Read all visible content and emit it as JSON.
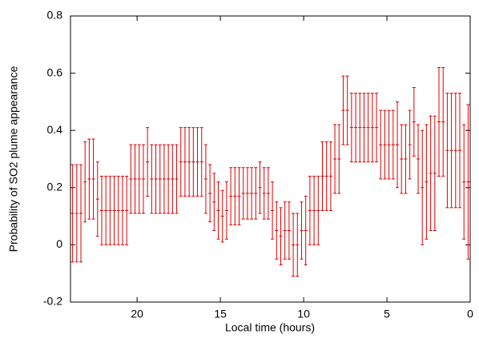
{
  "chart_data": {
    "type": "errorbar",
    "xlabel": "Local time (hours)",
    "ylabel": "Probability of SO2 plume appearance",
    "xlim": [
      24,
      0
    ],
    "xticks": [
      20,
      15,
      10,
      5,
      0
    ],
    "ylim": [
      -0.2,
      0.8
    ],
    "yticks": [
      -0.2,
      0,
      0.2,
      0.4,
      0.6,
      0.8
    ],
    "color": "#e00000",
    "x": [
      23.875,
      23.625,
      23.375,
      23.125,
      22.875,
      22.625,
      22.375,
      22.125,
      21.875,
      21.625,
      21.375,
      21.125,
      20.875,
      20.625,
      20.375,
      20.125,
      19.875,
      19.625,
      19.375,
      19.125,
      18.875,
      18.625,
      18.375,
      18.125,
      17.875,
      17.625,
      17.375,
      17.125,
      16.875,
      16.625,
      16.375,
      16.125,
      15.875,
      15.625,
      15.375,
      15.125,
      14.875,
      14.625,
      14.375,
      14.125,
      13.875,
      13.625,
      13.375,
      13.125,
      12.875,
      12.625,
      12.375,
      12.125,
      11.875,
      11.625,
      11.375,
      11.125,
      10.875,
      10.625,
      10.375,
      10.125,
      9.875,
      9.625,
      9.375,
      9.125,
      8.875,
      8.625,
      8.375,
      8.125,
      7.875,
      7.625,
      7.375,
      7.125,
      6.875,
      6.625,
      6.375,
      6.125,
      5.875,
      5.625,
      5.375,
      5.125,
      4.875,
      4.625,
      4.375,
      4.125,
      3.875,
      3.625,
      3.375,
      3.125,
      2.875,
      2.625,
      2.375,
      2.125,
      1.875,
      1.625,
      1.375,
      1.125,
      0.875,
      0.625,
      0.375,
      0.125
    ],
    "values": [
      0.11,
      0.11,
      0.11,
      0.22,
      0.23,
      0.23,
      0.16,
      0.12,
      0.12,
      0.12,
      0.12,
      0.12,
      0.12,
      0.12,
      0.23,
      0.23,
      0.23,
      0.23,
      0.29,
      0.23,
      0.23,
      0.23,
      0.23,
      0.23,
      0.23,
      0.23,
      0.29,
      0.29,
      0.29,
      0.29,
      0.29,
      0.29,
      0.23,
      0.18,
      0.15,
      0.12,
      0.1,
      0.12,
      0.17,
      0.17,
      0.17,
      0.18,
      0.18,
      0.18,
      0.18,
      0.2,
      0.18,
      0.18,
      0.12,
      0.05,
      0.03,
      0.05,
      0.05,
      0,
      0,
      0.05,
      0.05,
      0.12,
      0.12,
      0.12,
      0.24,
      0.24,
      0.24,
      0.3,
      0.3,
      0.47,
      0.47,
      0.41,
      0.41,
      0.41,
      0.41,
      0.41,
      0.41,
      0.41,
      0.35,
      0.35,
      0.35,
      0.35,
      0.35,
      0.3,
      0.3,
      0.35,
      0.43,
      0.3,
      0.2,
      0.22,
      0.25,
      0.25,
      0.43,
      0.43,
      0.33,
      0.33,
      0.33,
      0.33,
      0.22,
      0.22
    ],
    "errors": [
      0.17,
      0.17,
      0.17,
      0.14,
      0.14,
      0.14,
      0.13,
      0.12,
      0.12,
      0.12,
      0.12,
      0.12,
      0.12,
      0.12,
      0.12,
      0.12,
      0.12,
      0.12,
      0.12,
      0.12,
      0.12,
      0.12,
      0.12,
      0.12,
      0.12,
      0.12,
      0.12,
      0.12,
      0.12,
      0.12,
      0.12,
      0.12,
      0.12,
      0.1,
      0.1,
      0.1,
      0.09,
      0.1,
      0.1,
      0.1,
      0.1,
      0.09,
      0.09,
      0.09,
      0.09,
      0.09,
      0.09,
      0.09,
      0.1,
      0.1,
      0.1,
      0.1,
      0.1,
      0.11,
      0.11,
      0.1,
      0.12,
      0.12,
      0.12,
      0.12,
      0.12,
      0.12,
      0.12,
      0.12,
      0.12,
      0.12,
      0.12,
      0.12,
      0.12,
      0.12,
      0.12,
      0.12,
      0.12,
      0.12,
      0.12,
      0.12,
      0.12,
      0.12,
      0.15,
      0.12,
      0.12,
      0.12,
      0.12,
      0.12,
      0.2,
      0.2,
      0.2,
      0.2,
      0.19,
      0.19,
      0.2,
      0.2,
      0.2,
      0.2,
      0.2,
      0.27
    ]
  }
}
